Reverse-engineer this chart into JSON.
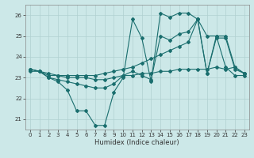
{
  "xlabel": "Humidex (Indice chaleur)",
  "bg_color": "#cce8e8",
  "grid_color": "#b0d0d0",
  "line_color": "#1a6e6e",
  "xlim": [
    -0.5,
    23.5
  ],
  "ylim": [
    20.5,
    26.5
  ],
  "yticks": [
    21,
    22,
    23,
    24,
    25,
    26
  ],
  "xticks": [
    0,
    1,
    2,
    3,
    4,
    5,
    6,
    7,
    8,
    9,
    10,
    11,
    12,
    13,
    14,
    15,
    16,
    17,
    18,
    19,
    20,
    21,
    22,
    23
  ],
  "series": [
    {
      "x": [
        0,
        1,
        2,
        3,
        4,
        5,
        6,
        7,
        8,
        9,
        10,
        11,
        12,
        13,
        14,
        15,
        16,
        17,
        18,
        19,
        20,
        21,
        22,
        23
      ],
      "y": [
        23.4,
        23.3,
        23.0,
        22.8,
        22.4,
        21.4,
        21.4,
        20.7,
        20.7,
        22.3,
        23.0,
        25.8,
        24.9,
        22.8,
        26.1,
        25.9,
        26.1,
        26.1,
        25.8,
        25.0,
        25.0,
        23.5,
        23.1,
        23.1
      ]
    },
    {
      "x": [
        0,
        1,
        2,
        3,
        4,
        5,
        6,
        7,
        8,
        9,
        10,
        11,
        12,
        13,
        14,
        15,
        16,
        17,
        18,
        19,
        20,
        21,
        22,
        23
      ],
      "y": [
        23.4,
        23.3,
        23.0,
        22.9,
        22.8,
        22.7,
        22.6,
        22.5,
        22.5,
        22.7,
        23.1,
        23.3,
        23.1,
        22.9,
        25.0,
        24.8,
        25.1,
        25.2,
        25.8,
        23.2,
        25.0,
        25.0,
        23.5,
        23.2
      ]
    },
    {
      "x": [
        0,
        1,
        2,
        3,
        4,
        5,
        6,
        7,
        8,
        9,
        10,
        11,
        12,
        13,
        14,
        15,
        16,
        17,
        18,
        19,
        20,
        21,
        22,
        23
      ],
      "y": [
        23.4,
        23.3,
        23.2,
        23.1,
        23.1,
        23.1,
        23.1,
        23.1,
        23.2,
        23.3,
        23.4,
        23.5,
        23.7,
        23.9,
        24.1,
        24.3,
        24.5,
        24.7,
        25.8,
        23.2,
        24.9,
        24.9,
        23.4,
        23.2
      ]
    },
    {
      "x": [
        0,
        1,
        2,
        3,
        4,
        5,
        6,
        7,
        8,
        9,
        10,
        11,
        12,
        13,
        14,
        15,
        16,
        17,
        18,
        19,
        20,
        21,
        22,
        23
      ],
      "y": [
        23.3,
        23.3,
        23.1,
        23.1,
        23.0,
        23.0,
        23.0,
        22.9,
        22.9,
        23.0,
        23.1,
        23.1,
        23.2,
        23.2,
        23.3,
        23.3,
        23.4,
        23.4,
        23.4,
        23.4,
        23.5,
        23.4,
        23.5,
        23.2
      ]
    }
  ]
}
